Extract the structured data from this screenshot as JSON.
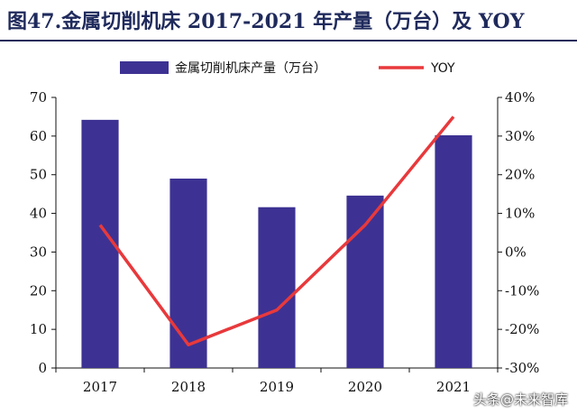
{
  "figure": {
    "title": "图47.金属切削机床 2017-2021 年产量（万台）及 YOY"
  },
  "watermark": "头条@未来智库",
  "colors": {
    "bar": "#3d3293",
    "line": "#e8393c",
    "title": "#1f2a5c",
    "axis": "#111111"
  },
  "chart_data": {
    "type": "bar",
    "categories": [
      "2017",
      "2018",
      "2019",
      "2020",
      "2021"
    ],
    "series": [
      {
        "name": "金属切削机床产量（万台）",
        "type": "bar",
        "axis": "left",
        "values": [
          64.2,
          49.0,
          41.6,
          44.6,
          60.2
        ]
      },
      {
        "name": "YOY",
        "type": "line",
        "axis": "right",
        "values": [
          0.07,
          -0.24,
          -0.15,
          0.07,
          0.35
        ]
      }
    ],
    "ylim": [
      0,
      70
    ],
    "y_ticks": [
      "0",
      "10",
      "20",
      "30",
      "40",
      "50",
      "60",
      "70"
    ],
    "y2lim": [
      -0.3,
      0.4
    ],
    "y2_ticks": [
      "-30%",
      "-20%",
      "-10%",
      "0%",
      "10%",
      "20%",
      "30%",
      "40%"
    ],
    "legend_position": "top",
    "grid": false
  }
}
